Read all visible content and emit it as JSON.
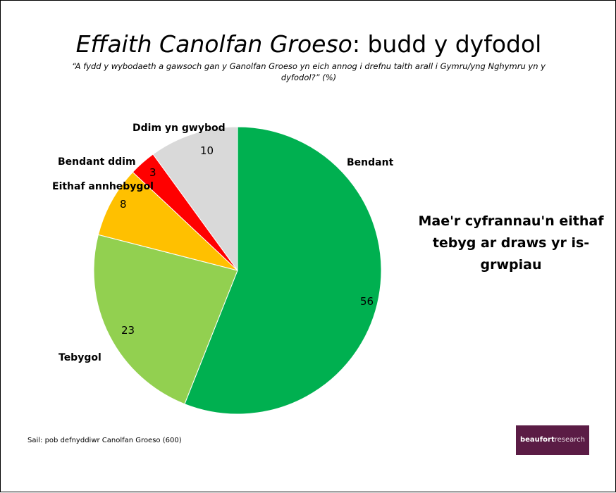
{
  "slide": {
    "title_part1": "Effaith Canolfan Groeso",
    "title_part2": ": budd y dyfodol",
    "subtitle": "“A fydd y wybodaeth a gawsoch gan y Ganolfan Groeso yn eich annog i drefnu taith arall i Gymru/yng Nghymru yn y dyfodol?” (%)",
    "note": "Mae'r cyfrannau'n eithaf tebyg ar draws yr is-grwpiau",
    "source": "Sail: pob defnyddiwr Canolfan Groeso (600)",
    "logo_bold": "beaufort",
    "logo_regular": "research"
  },
  "chart_data": {
    "type": "pie",
    "start_angle": "12 o'clock",
    "direction": "clockwise",
    "categories": [
      "Bendant",
      "Tebygol",
      "Eithaf annhebygol",
      "Bendant ddim",
      "Ddim yn gwybod"
    ],
    "values": [
      56,
      23,
      8,
      3,
      10
    ],
    "colors": [
      "#00b050",
      "#92d050",
      "#ffc000",
      "#ff0000",
      "#d9d9d9"
    ],
    "data_labels": [
      "56",
      "23",
      "8",
      "3",
      "10"
    ]
  }
}
